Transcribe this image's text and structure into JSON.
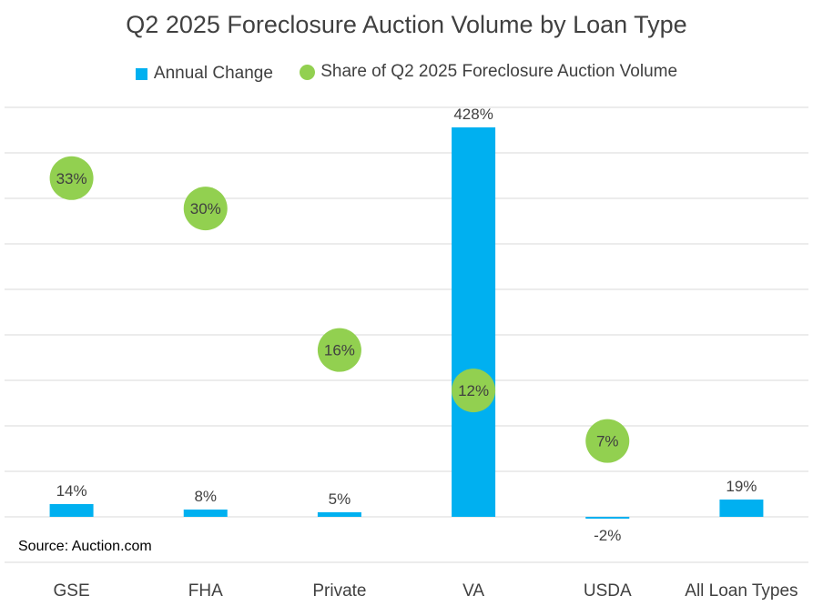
{
  "chart_data": {
    "type": "bar",
    "title": "Q2 2025 Foreclosure Auction Volume by Loan Type",
    "categories": [
      "GSE",
      "FHA",
      "Private",
      "VA",
      "USDA",
      "All Loan Types"
    ],
    "series": [
      {
        "name": "Annual Change",
        "type": "bar",
        "color": "#00B0F0",
        "values": [
          14,
          8,
          5,
          428,
          -2,
          19
        ],
        "labels": [
          "14%",
          "8%",
          "5%",
          "428%",
          "-2%",
          "19%"
        ]
      },
      {
        "name": "Share of Q2 2025 Foreclosure Auction Volume",
        "type": "scatter",
        "color": "#92D050",
        "values": [
          33,
          30,
          16,
          12,
          7,
          null
        ],
        "labels": [
          "33%",
          "30%",
          "16%",
          "12%",
          "7%",
          null
        ]
      }
    ],
    "primary_axis": {
      "min": -50,
      "max": 450
    },
    "secondary_axis": {
      "min": -5,
      "max": 40
    },
    "gridlines": true,
    "legend_position": "top",
    "source_note": "Source: Auction.com"
  }
}
